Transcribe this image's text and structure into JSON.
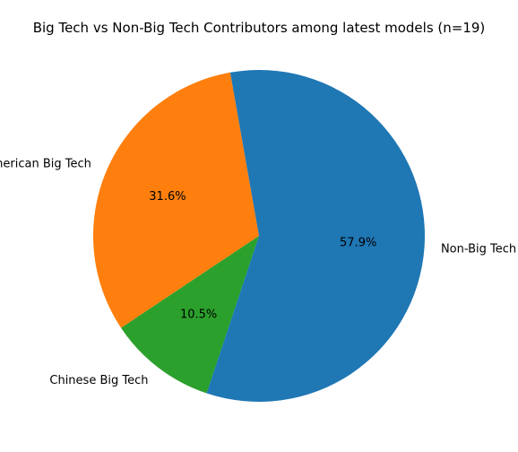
{
  "chart_data": {
    "type": "pie",
    "title": "Big Tech vs Non-Big Tech Contributors among latest models (n=19)",
    "slices": [
      {
        "label": "American Big Tech",
        "value": 6,
        "percent_label": "31.6%",
        "color": "#ff7f0e"
      },
      {
        "label": "Chinese Big Tech",
        "value": 2,
        "percent_label": "10.5%",
        "color": "#2ca02c"
      },
      {
        "label": "Non-Big Tech",
        "value": 11,
        "percent_label": "57.9%",
        "color": "#1f77b4"
      }
    ]
  }
}
